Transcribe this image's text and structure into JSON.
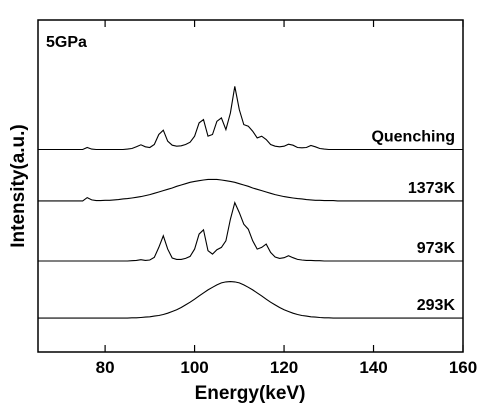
{
  "chart_data": {
    "type": "line",
    "annotation": "5GPa",
    "xlabel": "Energy(keV)",
    "ylabel": "Intensity(a.u.)",
    "xlim": [
      65,
      160
    ],
    "xticks": [
      80,
      100,
      120,
      140,
      160
    ],
    "ylim": [
      0,
      100
    ],
    "grid": false,
    "x": [
      65,
      66,
      67,
      68,
      69,
      70,
      71,
      72,
      73,
      74,
      75,
      76,
      77,
      78,
      79,
      80,
      81,
      82,
      83,
      84,
      85,
      86,
      87,
      88,
      89,
      90,
      91,
      92,
      93,
      94,
      95,
      96,
      97,
      98,
      99,
      100,
      101,
      102,
      103,
      104,
      105,
      106,
      107,
      108,
      109,
      110,
      111,
      112,
      113,
      114,
      115,
      116,
      117,
      118,
      119,
      120,
      121,
      122,
      123,
      124,
      125,
      126,
      127,
      128,
      129,
      130,
      131,
      132,
      133,
      134,
      135,
      136,
      137,
      138,
      139,
      140,
      141,
      142,
      143,
      144,
      145,
      146,
      147,
      148,
      149,
      150,
      151,
      152,
      153,
      154,
      155,
      156,
      157,
      158,
      159,
      160
    ],
    "series": [
      {
        "name": "Quenching",
        "color": "#000000",
        "values": [
          61.0,
          61.0,
          61.0,
          61.0,
          61.0,
          61.0,
          61.0,
          61.0,
          61.0,
          61.0,
          61.0,
          61.6,
          61.1,
          61.0,
          61.0,
          61.0,
          61.0,
          61.0,
          61.0,
          61.0,
          61.1,
          61.3,
          61.8,
          62.4,
          61.8,
          61.6,
          62.5,
          65.5,
          66.8,
          63.5,
          62.3,
          62.0,
          62.1,
          62.5,
          63.2,
          65.0,
          69.0,
          70.0,
          65.0,
          65.5,
          69.5,
          70.5,
          67.0,
          72.0,
          80.0,
          73.0,
          68.5,
          68.0,
          66.5,
          64.5,
          65.0,
          64.0,
          62.5,
          62.0,
          61.8,
          62.0,
          62.6,
          62.3,
          61.6,
          61.5,
          61.6,
          62.2,
          61.8,
          61.3,
          61.1,
          61.0,
          61.0,
          61.0,
          61.0,
          61.0,
          61.0,
          61.0,
          61.0,
          61.0,
          61.0,
          61.0,
          61.0,
          61.0,
          61.0,
          61.0,
          61.0,
          61.0,
          61.0,
          61.0,
          61.0,
          61.0,
          61.0,
          61.0,
          61.0,
          61.0,
          61.0,
          61.0,
          61.0,
          61.0,
          61.0,
          61.0
        ]
      },
      {
        "name": "1373K",
        "color": "#000000",
        "values": [
          45.5,
          45.5,
          45.5,
          45.5,
          45.5,
          45.5,
          45.5,
          45.5,
          45.5,
          45.5,
          45.5,
          46.5,
          45.8,
          45.6,
          45.6,
          45.7,
          45.7,
          45.8,
          45.9,
          46.1,
          46.2,
          46.4,
          46.6,
          46.8,
          47.1,
          47.4,
          47.8,
          48.2,
          48.6,
          49.0,
          49.4,
          49.9,
          50.3,
          50.7,
          51.1,
          51.4,
          51.6,
          51.8,
          52.0,
          52.0,
          52.0,
          51.8,
          51.6,
          51.4,
          51.1,
          50.7,
          50.3,
          49.9,
          49.4,
          49.0,
          48.6,
          48.2,
          47.8,
          47.4,
          47.1,
          46.8,
          46.6,
          46.4,
          46.2,
          46.1,
          45.9,
          45.8,
          45.7,
          45.7,
          45.6,
          45.6,
          45.6,
          45.5,
          45.5,
          45.5,
          45.5,
          45.5,
          45.5,
          45.5,
          45.5,
          45.5,
          45.5,
          45.5,
          45.5,
          45.5,
          45.5,
          45.5,
          45.5,
          45.5,
          45.5,
          45.5,
          45.5,
          45.5,
          45.5,
          45.5,
          45.5,
          45.5,
          45.5,
          45.5,
          45.5,
          45.5
        ]
      },
      {
        "name": "973K",
        "color": "#000000",
        "values": [
          27.4,
          27.4,
          27.4,
          27.4,
          27.4,
          27.4,
          27.4,
          27.4,
          27.4,
          27.4,
          27.4,
          27.4,
          27.4,
          27.4,
          27.4,
          27.4,
          27.4,
          27.4,
          27.4,
          27.4,
          27.4,
          27.5,
          27.6,
          27.8,
          27.6,
          27.7,
          28.5,
          31.5,
          35.0,
          31.0,
          28.3,
          27.9,
          27.9,
          28.2,
          28.8,
          31.0,
          35.5,
          36.8,
          30.5,
          29.5,
          30.8,
          31.5,
          33.5,
          40.0,
          45.0,
          42.0,
          38.5,
          37.0,
          33.5,
          31.0,
          31.5,
          32.5,
          30.0,
          28.6,
          28.2,
          28.4,
          29.0,
          28.4,
          27.9,
          27.7,
          27.6,
          27.6,
          27.5,
          27.5,
          27.4,
          27.4,
          27.4,
          27.4,
          27.4,
          27.4,
          27.4,
          27.4,
          27.4,
          27.4,
          27.4,
          27.4,
          27.4,
          27.4,
          27.4,
          27.4,
          27.4,
          27.4,
          27.4,
          27.4,
          27.4,
          27.4,
          27.4,
          27.4,
          27.4,
          27.4,
          27.4,
          27.4,
          27.4,
          27.4,
          27.4,
          27.4
        ]
      },
      {
        "name": "293K",
        "color": "#000000",
        "values": [
          10.2,
          10.2,
          10.2,
          10.2,
          10.2,
          10.2,
          10.2,
          10.2,
          10.2,
          10.2,
          10.2,
          10.2,
          10.2,
          10.2,
          10.2,
          10.2,
          10.2,
          10.2,
          10.2,
          10.2,
          10.2,
          10.3,
          10.3,
          10.4,
          10.5,
          10.6,
          10.8,
          11.0,
          11.3,
          11.7,
          12.2,
          12.7,
          13.4,
          14.2,
          15.0,
          15.9,
          16.9,
          17.8,
          18.7,
          19.5,
          20.2,
          20.8,
          21.1,
          21.2,
          21.1,
          20.8,
          20.2,
          19.5,
          18.7,
          17.8,
          16.9,
          15.9,
          15.0,
          14.2,
          13.4,
          12.7,
          12.2,
          11.7,
          11.3,
          11.0,
          10.8,
          10.6,
          10.5,
          10.4,
          10.3,
          10.3,
          10.2,
          10.2,
          10.2,
          10.2,
          10.2,
          10.2,
          10.2,
          10.2,
          10.2,
          10.2,
          10.2,
          10.2,
          10.2,
          10.2,
          10.2,
          10.2,
          10.2,
          10.2,
          10.2,
          10.2,
          10.2,
          10.2,
          10.2,
          10.2,
          10.2,
          10.2,
          10.2,
          10.2,
          10.2,
          10.2
        ]
      }
    ]
  }
}
